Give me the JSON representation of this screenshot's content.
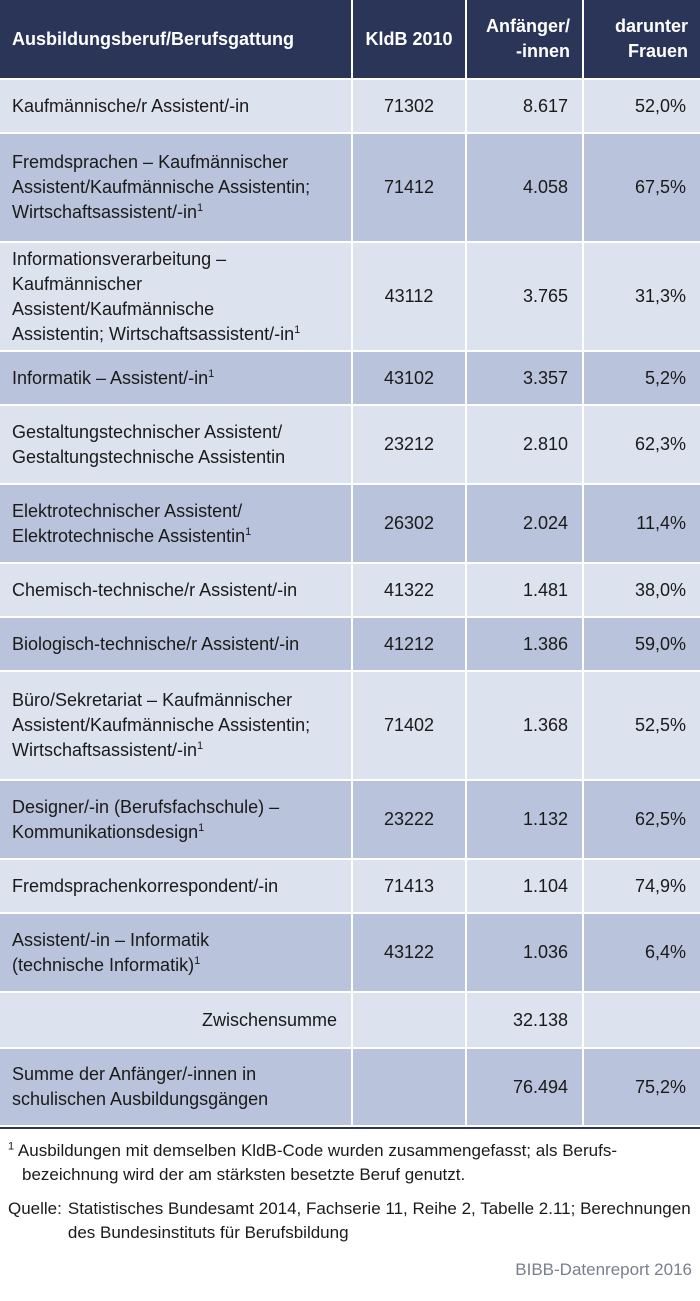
{
  "table": {
    "headers": {
      "beruf": "Ausbildungsberuf/Berufsgattung",
      "kldb": "KldB 2010",
      "anfaenger_line1": "Anfänger/",
      "anfaenger_line2": "-innen",
      "frauen_line1": "darunter",
      "frauen_line2": "Frauen"
    },
    "rows": [
      {
        "lines": [
          "Kaufmännische/r Assistent/-in"
        ],
        "sup": "",
        "kldb": "71302",
        "anfaenger": "8.617",
        "frauen": "52,0%"
      },
      {
        "lines": [
          "Fremdsprachen – Kaufmännischer",
          "Assistent/Kaufmännische Assistentin;",
          "Wirtschaftsassistent/-in"
        ],
        "sup": "1",
        "kldb": "71412",
        "anfaenger": "4.058",
        "frauen": "67,5%"
      },
      {
        "lines": [
          "Informationsverarbeitung –",
          "Kaufmännischer Assistent/Kaufmännische",
          "Assistentin; Wirtschaftsassistent/-in"
        ],
        "sup": "1",
        "kldb": "43112",
        "anfaenger": "3.765",
        "frauen": "31,3%"
      },
      {
        "lines": [
          "Informatik – Assistent/-in"
        ],
        "sup": "1",
        "kldb": "43102",
        "anfaenger": "3.357",
        "frauen": "5,2%"
      },
      {
        "lines": [
          "Gestaltungstechnischer Assistent/",
          "Gestaltungstechnische Assistentin"
        ],
        "sup": "",
        "kldb": "23212",
        "anfaenger": "2.810",
        "frauen": "62,3%"
      },
      {
        "lines": [
          "Elektrotechnischer Assistent/",
          "Elektrotechnische Assistentin"
        ],
        "sup": "1",
        "kldb": "26302",
        "anfaenger": "2.024",
        "frauen": "11,4%"
      },
      {
        "lines": [
          "Chemisch-technische/r Assistent/-in"
        ],
        "sup": "",
        "kldb": "41322",
        "anfaenger": "1.481",
        "frauen": "38,0%"
      },
      {
        "lines": [
          "Biologisch-technische/r Assistent/-in"
        ],
        "sup": "",
        "kldb": "41212",
        "anfaenger": "1.386",
        "frauen": "59,0%"
      },
      {
        "lines": [
          "Büro/Sekretariat – Kaufmännischer",
          "Assistent/Kaufmännische Assistentin;",
          "Wirtschaftsassistent/-in"
        ],
        "sup": "1",
        "kldb": "71402",
        "anfaenger": "1.368",
        "frauen": "52,5%"
      },
      {
        "lines": [
          "Designer/-in (Berufsfachschule) –",
          "Kommunikationsdesign"
        ],
        "sup": "1",
        "kldb": "23222",
        "anfaenger": "1.132",
        "frauen": "62,5%"
      },
      {
        "lines": [
          "Fremdsprachenkorrespondent/-in"
        ],
        "sup": "",
        "kldb": "71413",
        "anfaenger": "1.104",
        "frauen": "74,9%"
      },
      {
        "lines": [
          "Assistent/-in – Informatik",
          "(technische Informatik)"
        ],
        "sup": "1",
        "kldb": "43122",
        "anfaenger": "1.036",
        "frauen": "6,4%"
      }
    ],
    "zwischensumme": {
      "label": "Zwischensumme",
      "anfaenger": "32.138"
    },
    "summe": {
      "line1": "Summe der Anfänger/-innen in",
      "line2": "schulischen Ausbildungsgängen",
      "anfaenger": "76.494",
      "frauen": "75,2%"
    }
  },
  "footnote": {
    "mark": "1",
    "text": "Ausbildungen mit demselben KldB-Code wurden zusammengefasst; als Berufs-bezeichnung wird der am stärksten besetzte Beruf genutzt."
  },
  "source": {
    "label": "Quelle:",
    "text": "Statistisches Bundesamt 2014, Fachserie 11, Reihe 2, Tabelle 2.11; Berechnungen des Bundesinstituts für Berufsbildung"
  },
  "credit": "BIBB-Datenreport 2016"
}
